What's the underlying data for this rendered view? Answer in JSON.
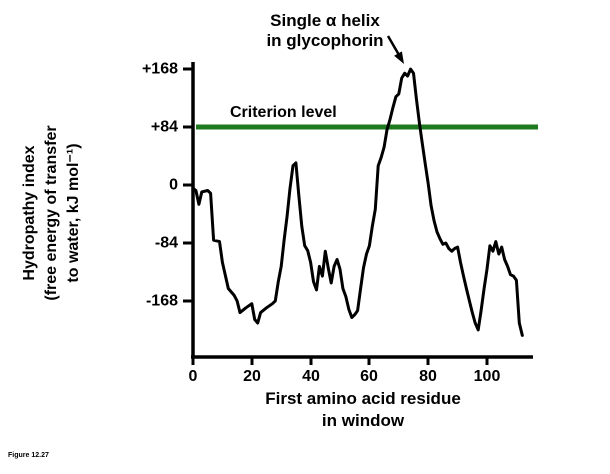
{
  "figure": {
    "caption": "Figure 12.27"
  },
  "chart_data": {
    "type": "line",
    "title": "",
    "annotation": {
      "line1": "Single α helix",
      "line2": "in glycophorin"
    },
    "criterion": {
      "label": "Criterion level",
      "value": 84,
      "color": "#1f7a1f"
    },
    "xlabel_line1": "First amino acid residue",
    "xlabel_line2": "in window",
    "ylabel_line1": "Hydropathy index",
    "ylabel_line2": "(free energy of transfer",
    "ylabel_line3": "to water, kJ mol⁻¹)",
    "xlim": [
      0,
      115
    ],
    "ylim": [
      -230,
      180
    ],
    "grid": false,
    "legend": "none",
    "xticks": [
      {
        "label": "0",
        "value": 0
      },
      {
        "label": "20",
        "value": 20
      },
      {
        "label": "40",
        "value": 40
      },
      {
        "label": "60",
        "value": 60
      },
      {
        "label": "80",
        "value": 80
      },
      {
        "label": "100",
        "value": 100
      }
    ],
    "yticks": [
      {
        "label": "+168",
        "value": 168
      },
      {
        "label": "+84",
        "value": 84
      },
      {
        "label": "0",
        "value": 0
      },
      {
        "label": "-84",
        "value": -84
      },
      {
        "label": "-168",
        "value": -168
      }
    ],
    "series": [
      {
        "name": "hydropathy",
        "points": [
          [
            0,
            -5
          ],
          [
            1,
            -8
          ],
          [
            2,
            -28
          ],
          [
            3,
            -10
          ],
          [
            5,
            -8
          ],
          [
            6,
            -12
          ],
          [
            7,
            -80
          ],
          [
            9,
            -82
          ],
          [
            10,
            -112
          ],
          [
            12,
            -150
          ],
          [
            14,
            -160
          ],
          [
            15,
            -168
          ],
          [
            16,
            -185
          ],
          [
            18,
            -178
          ],
          [
            20,
            -172
          ],
          [
            21,
            -195
          ],
          [
            22,
            -200
          ],
          [
            23,
            -185
          ],
          [
            25,
            -178
          ],
          [
            27,
            -172
          ],
          [
            28,
            -168
          ],
          [
            29,
            -140
          ],
          [
            30,
            -118
          ],
          [
            31,
            -80
          ],
          [
            32,
            -45
          ],
          [
            33,
            -5
          ],
          [
            34,
            28
          ],
          [
            35,
            32
          ],
          [
            36,
            -15
          ],
          [
            37,
            -60
          ],
          [
            38,
            -88
          ],
          [
            39,
            -95
          ],
          [
            40,
            -112
          ],
          [
            41,
            -140
          ],
          [
            42,
            -152
          ],
          [
            43,
            -118
          ],
          [
            44,
            -132
          ],
          [
            45,
            -96
          ],
          [
            46,
            -120
          ],
          [
            47,
            -142
          ],
          [
            48,
            -118
          ],
          [
            49,
            -108
          ],
          [
            50,
            -122
          ],
          [
            51,
            -150
          ],
          [
            52,
            -162
          ],
          [
            53,
            -180
          ],
          [
            54,
            -192
          ],
          [
            55,
            -188
          ],
          [
            56,
            -182
          ],
          [
            57,
            -150
          ],
          [
            58,
            -120
          ],
          [
            59,
            -100
          ],
          [
            60,
            -88
          ],
          [
            61,
            -60
          ],
          [
            62,
            -35
          ],
          [
            63,
            28
          ],
          [
            64,
            40
          ],
          [
            65,
            55
          ],
          [
            66,
            80
          ],
          [
            67,
            95
          ],
          [
            68,
            112
          ],
          [
            69,
            128
          ],
          [
            70,
            132
          ],
          [
            71,
            155
          ],
          [
            72,
            162
          ],
          [
            73,
            158
          ],
          [
            74,
            168
          ],
          [
            75,
            162
          ],
          [
            76,
            125
          ],
          [
            77,
            90
          ],
          [
            78,
            60
          ],
          [
            79,
            30
          ],
          [
            80,
            2
          ],
          [
            81,
            -30
          ],
          [
            82,
            -52
          ],
          [
            83,
            -68
          ],
          [
            84,
            -78
          ],
          [
            85,
            -86
          ],
          [
            86,
            -84
          ],
          [
            87,
            -92
          ],
          [
            88,
            -96
          ],
          [
            89,
            -92
          ],
          [
            90,
            -90
          ],
          [
            91,
            -112
          ],
          [
            92,
            -132
          ],
          [
            93,
            -150
          ],
          [
            94,
            -168
          ],
          [
            95,
            -185
          ],
          [
            96,
            -200
          ],
          [
            97,
            -210
          ],
          [
            98,
            -182
          ],
          [
            99,
            -150
          ],
          [
            100,
            -122
          ],
          [
            101,
            -88
          ],
          [
            102,
            -96
          ],
          [
            103,
            -82
          ],
          [
            104,
            -100
          ],
          [
            105,
            -90
          ],
          [
            106,
            -108
          ],
          [
            107,
            -118
          ],
          [
            108,
            -130
          ],
          [
            109,
            -132
          ],
          [
            110,
            -138
          ],
          [
            111,
            -200
          ],
          [
            112,
            -218
          ]
        ]
      }
    ]
  }
}
